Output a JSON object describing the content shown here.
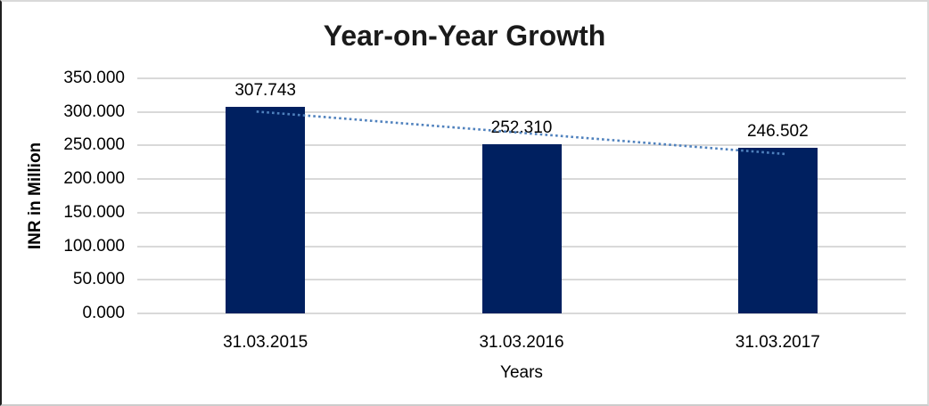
{
  "chart_data": {
    "type": "bar",
    "title": "Year-on-Year Growth",
    "categories": [
      "31.03.2015",
      "31.03.2016",
      "31.03.2017"
    ],
    "values": [
      307.743,
      252.31,
      246.502
    ],
    "data_labels": [
      "307.743",
      "252.310",
      "246.502"
    ],
    "xlabel": "Years",
    "ylabel": "INR in Million",
    "ylim": [
      0,
      350
    ],
    "ytick_step": 50,
    "ytick_labels": [
      "0.000",
      "50.000",
      "100.000",
      "150.000",
      "200.000",
      "250.000",
      "300.000",
      "350.000"
    ],
    "grid": true,
    "legend": "none",
    "trendline": {
      "type": "linear",
      "style": "dotted",
      "color": "#4F81BD"
    },
    "colors": {
      "bar": "#002060",
      "gridline": "#D9D9D9",
      "text": "#000000",
      "title": "#1A1A1A"
    }
  }
}
